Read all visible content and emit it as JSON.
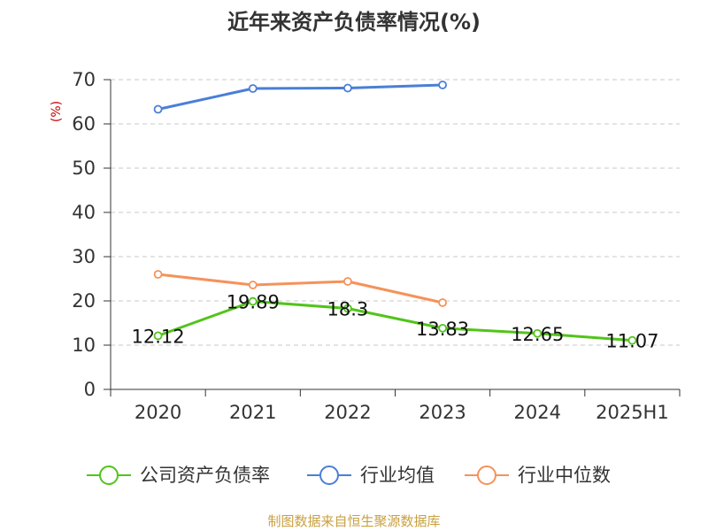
{
  "chart_data": {
    "type": "line",
    "title": "近年来资产负债率情况(%)",
    "ylabel": "(%)",
    "xlabel": "",
    "categories": [
      "2020",
      "2021",
      "2022",
      "2023",
      "2024",
      "2025H1"
    ],
    "ylim": [
      0,
      70
    ],
    "yticks": [
      0,
      10,
      20,
      30,
      40,
      50,
      60,
      70
    ],
    "grid": true,
    "legend_position": "bottom",
    "series": [
      {
        "name": "公司资产负债率",
        "color": "#52c41a",
        "values": [
          12.12,
          19.89,
          18.3,
          13.83,
          12.65,
          11.07
        ],
        "labels": [
          "12.12",
          "19.89",
          "18.3",
          "13.83",
          "12.65",
          "11.07"
        ]
      },
      {
        "name": "行业均值",
        "color": "#4a7fd6",
        "values": [
          63.3,
          68.0,
          68.1,
          68.8,
          null,
          null
        ]
      },
      {
        "name": "行业中位数",
        "color": "#f5925a",
        "values": [
          26.0,
          23.6,
          24.4,
          19.6,
          null,
          null
        ]
      }
    ]
  },
  "footer": {
    "source": "制图数据来自恒生聚源数据库"
  }
}
